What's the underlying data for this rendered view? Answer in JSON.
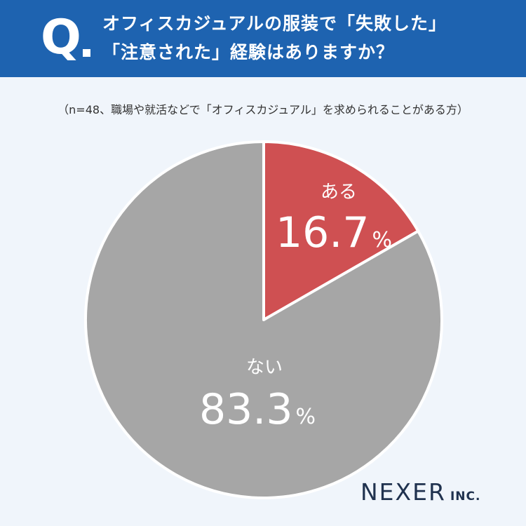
{
  "header": {
    "q_mark": "Q",
    "question_line_1": "オフィスカジュアルの服装で「失敗した」",
    "question_line_2": "「注意された」経験はありますか？"
  },
  "note": "（n=48、職場や就活などで「オフィスカジュアル」を求められることがある方）",
  "brand": {
    "name": "NEXER",
    "suffix": "INC."
  },
  "chart_data": {
    "type": "pie",
    "categories": [
      "ある",
      "ない"
    ],
    "values": [
      16.7,
      83.3
    ],
    "unit": "%",
    "colors": [
      "#cf5052",
      "#a6a6a6"
    ],
    "start": "12 o'clock, clockwise"
  }
}
